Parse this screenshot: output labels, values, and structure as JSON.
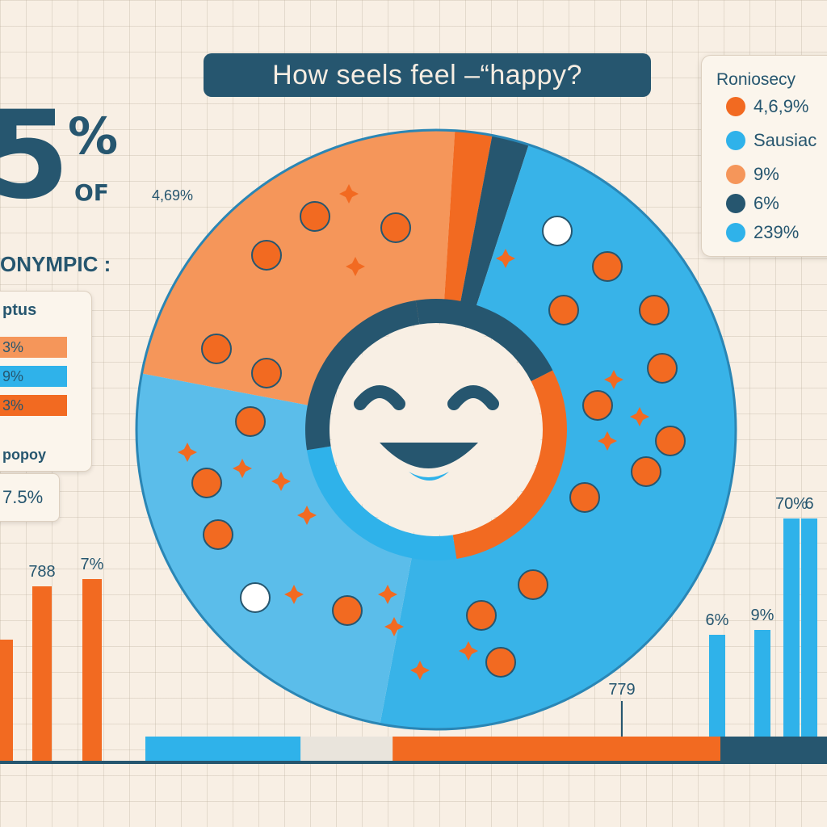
{
  "title": "How seels feel –“happy?",
  "headline": {
    "big_number": "5",
    "percent_sign": "%",
    "of": "OF"
  },
  "sub_heading": "ONYMPIC :",
  "small_note": "4,69%",
  "left_panel": {
    "title": "ptus",
    "rows": [
      {
        "label": "3%",
        "color": "#f5965a"
      },
      {
        "label": "9%",
        "color": "#2fb2ea"
      },
      {
        "label": "3%",
        "color": "#f26a21"
      }
    ],
    "footer": "popoy"
  },
  "left_small_panel": {
    "value": "7.5%"
  },
  "legend": {
    "title": "Roniosecy",
    "items": [
      {
        "label": "4,6,9%",
        "color": "#f26a21"
      },
      {
        "label": "Sausiac",
        "color": "#2fb2ea"
      },
      {
        "label": "9%",
        "color": "#f5965a"
      },
      {
        "label": "6%",
        "color": "#26566f"
      },
      {
        "label": "239%",
        "color": "#2fb2ea"
      }
    ]
  },
  "colors": {
    "navy": "#26566f",
    "orange": "#f26a21",
    "peach": "#f5965a",
    "sky": "#2fb2ea",
    "light_blue": "#59bfec",
    "background": "#f8efe4"
  },
  "chart_data": [
    {
      "type": "pie",
      "center_icon": "smiley-face-icon",
      "slices": [
        {
          "name": "peach",
          "value": 23,
          "color": "#f5965a"
        },
        {
          "name": "orange",
          "value": 2,
          "color": "#f26a21"
        },
        {
          "name": "navy",
          "value": 2,
          "color": "#26566f"
        },
        {
          "name": "blue",
          "value": 48,
          "color": "#38b3e8"
        },
        {
          "name": "light-blue",
          "value": 25,
          "color": "#5bbdea"
        }
      ],
      "inner_ring": [
        {
          "value": 20,
          "color": "#26566f"
        },
        {
          "value": 30,
          "color": "#f26a21"
        },
        {
          "value": 25,
          "color": "#2fb2ea"
        },
        {
          "value": 25,
          "color": "#26566f"
        }
      ]
    },
    {
      "type": "bar",
      "position": "bottom-left",
      "bars": [
        {
          "label": "",
          "value": 50,
          "color": "#f26a21"
        },
        {
          "label": "788",
          "value": 72,
          "color": "#f26a21"
        },
        {
          "label": "7%",
          "value": 75,
          "color": "#f26a21"
        }
      ],
      "ylim": [
        0,
        100
      ]
    },
    {
      "type": "bar",
      "position": "bottom-right",
      "bars": [
        {
          "label": "6%",
          "value": 52,
          "color": "#2fb2ea"
        },
        {
          "label": "9%",
          "value": 54,
          "color": "#2fb2ea"
        },
        {
          "label": "70%",
          "value": 100,
          "color": "#2fb2ea"
        },
        {
          "label": "6",
          "value": 100,
          "color": "#2fb2ea"
        }
      ],
      "ylim": [
        0,
        100
      ]
    },
    {
      "type": "bar",
      "orientation": "horizontal-stacked",
      "annotation": "779",
      "segments": [
        {
          "value": 27,
          "color": "#2fb2ea"
        },
        {
          "value": 16,
          "color": "#e9e4dc"
        },
        {
          "value": 57,
          "color": "#f26a21"
        }
      ]
    }
  ]
}
